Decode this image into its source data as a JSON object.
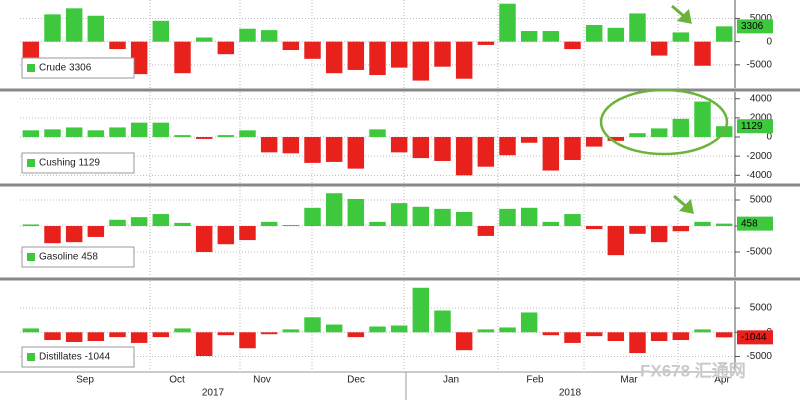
{
  "chart_data": [
    {
      "type": "bar",
      "series": [
        {
          "name": "Crude 3306",
          "values": [
            -3400,
            5900,
            7200,
            5600,
            -1600,
            -7000,
            4500,
            -6800,
            900,
            -2700,
            2800,
            2500,
            -1800,
            -3700,
            -6800,
            -6100,
            -7200,
            -5600,
            -8400,
            -5400,
            -8000,
            -700,
            8200,
            2300,
            2300,
            -1600,
            3600,
            3000,
            6100,
            -3000,
            2000,
            -5200,
            3306
          ]
        }
      ],
      "colors": {
        "positive": "#3ec83e",
        "negative": "#e8211d"
      },
      "ylim": [
        -10000,
        9000
      ],
      "yticks": [
        5000,
        0,
        -5000
      ],
      "grid": true
    },
    {
      "type": "bar",
      "series": [
        {
          "name": "Cushing 1129",
          "values": [
            700,
            800,
            1000,
            700,
            1000,
            1500,
            1500,
            200,
            -200,
            200,
            700,
            -1600,
            -1700,
            -2700,
            -2600,
            -3300,
            800,
            -1600,
            -2200,
            -2500,
            -4000,
            -3100,
            -1900,
            -600,
            -3500,
            -2400,
            -1000,
            -400,
            400,
            900,
            1900,
            3700,
            1129
          ]
        }
      ],
      "colors": {
        "positive": "#3ec83e",
        "negative": "#e8211d"
      },
      "ylim": [
        -4800,
        4700
      ],
      "yticks": [
        4000,
        2000,
        0,
        -2000,
        -4000
      ],
      "grid": true
    },
    {
      "type": "bar",
      "series": [
        {
          "name": "Gasoline 458",
          "values": [
            300,
            -3300,
            -3100,
            -2100,
            1200,
            1700,
            2300,
            600,
            -5000,
            -3500,
            -2700,
            800,
            200,
            3500,
            6300,
            5200,
            800,
            4400,
            3700,
            3300,
            2700,
            -1900,
            3300,
            3500,
            800,
            2300,
            -600,
            -5600,
            -1500,
            -3100,
            -1000,
            800,
            458
          ]
        }
      ],
      "colors": {
        "positive": "#3ec83e",
        "negative": "#e8211d"
      },
      "ylim": [
        -9800,
        7500
      ],
      "yticks": [
        5000,
        0,
        -5000
      ],
      "grid": true
    },
    {
      "type": "bar",
      "series": [
        {
          "name": "Distillates -1044",
          "values": [
            800,
            -1600,
            -2000,
            -1800,
            -1000,
            -2200,
            -1000,
            800,
            -4900,
            -600,
            -3300,
            -400,
            600,
            3100,
            1600,
            -1000,
            1200,
            1400,
            9200,
            4500,
            -3700,
            600,
            1000,
            4100,
            -600,
            -2200,
            -800,
            -1800,
            -4300,
            -1800,
            -1600,
            600,
            -1044
          ]
        }
      ],
      "colors": {
        "positive": "#3ec83e",
        "negative": "#e8211d"
      },
      "ylim": [
        -8000,
        10600
      ],
      "yticks": [
        5000,
        0,
        -5000
      ],
      "grid": true
    }
  ],
  "x_axis": {
    "months": [
      "Sep",
      "Oct",
      "Nov",
      "Dec",
      "Jan",
      "Feb",
      "Mar",
      "Apr"
    ],
    "years": [
      "2017",
      "2018"
    ]
  },
  "watermark": "FX678 汇通网"
}
